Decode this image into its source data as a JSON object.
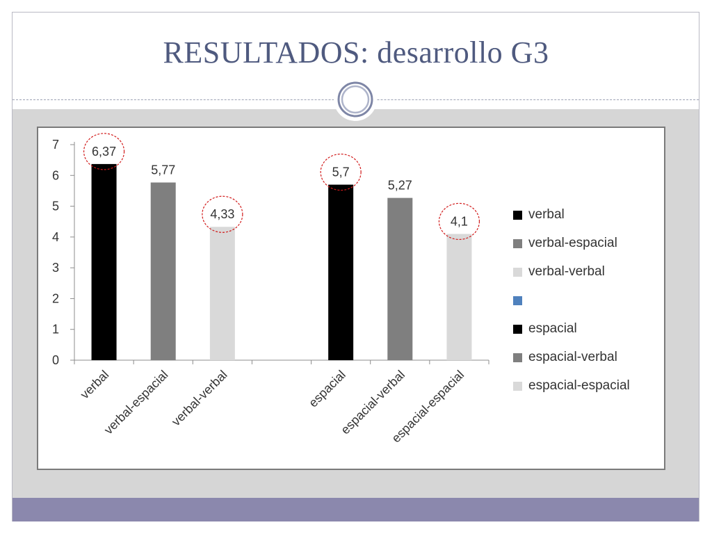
{
  "slide": {
    "title": "RESULTADOS: desarrollo G3"
  },
  "colors": {
    "accent": "#4f5a7f",
    "bottom_bar": "#8b88ad",
    "content_bg": "#d6d6d6",
    "highlight_circle": "#d11a1a"
  },
  "chart_data": {
    "type": "bar",
    "categories": [
      "verbal",
      "verbal-espacial",
      "verbal-verbal",
      "",
      "espacial",
      "espacial-verbal",
      "espacial-espacial"
    ],
    "values": [
      6.37,
      5.77,
      4.33,
      null,
      5.7,
      5.27,
      4.1
    ],
    "data_labels": [
      "6,37",
      "5,77",
      "4,33",
      "",
      "5,7",
      "5,27",
      "4,1"
    ],
    "bar_colors": [
      "#000000",
      "#7f7f7f",
      "#d9d9d9",
      "#4f81bd",
      "#000000",
      "#7f7f7f",
      "#d9d9d9"
    ],
    "highlighted": [
      true,
      false,
      true,
      false,
      true,
      false,
      true
    ],
    "ylim": [
      0,
      7
    ],
    "yticks": [
      "0",
      "1",
      "2",
      "3",
      "4",
      "5",
      "6",
      "7"
    ],
    "title": "",
    "xlabel": "",
    "ylabel": "",
    "grid": false,
    "legend_position": "right",
    "legend": [
      {
        "label": "verbal",
        "color": "#000000"
      },
      {
        "label": "verbal-espacial",
        "color": "#7f7f7f"
      },
      {
        "label": "verbal-verbal",
        "color": "#d9d9d9"
      },
      {
        "label": "",
        "color": "#4f81bd"
      },
      {
        "label": "espacial",
        "color": "#000000"
      },
      {
        "label": "espacial-verbal",
        "color": "#7f7f7f"
      },
      {
        "label": "espacial-espacial",
        "color": "#d9d9d9"
      }
    ]
  }
}
